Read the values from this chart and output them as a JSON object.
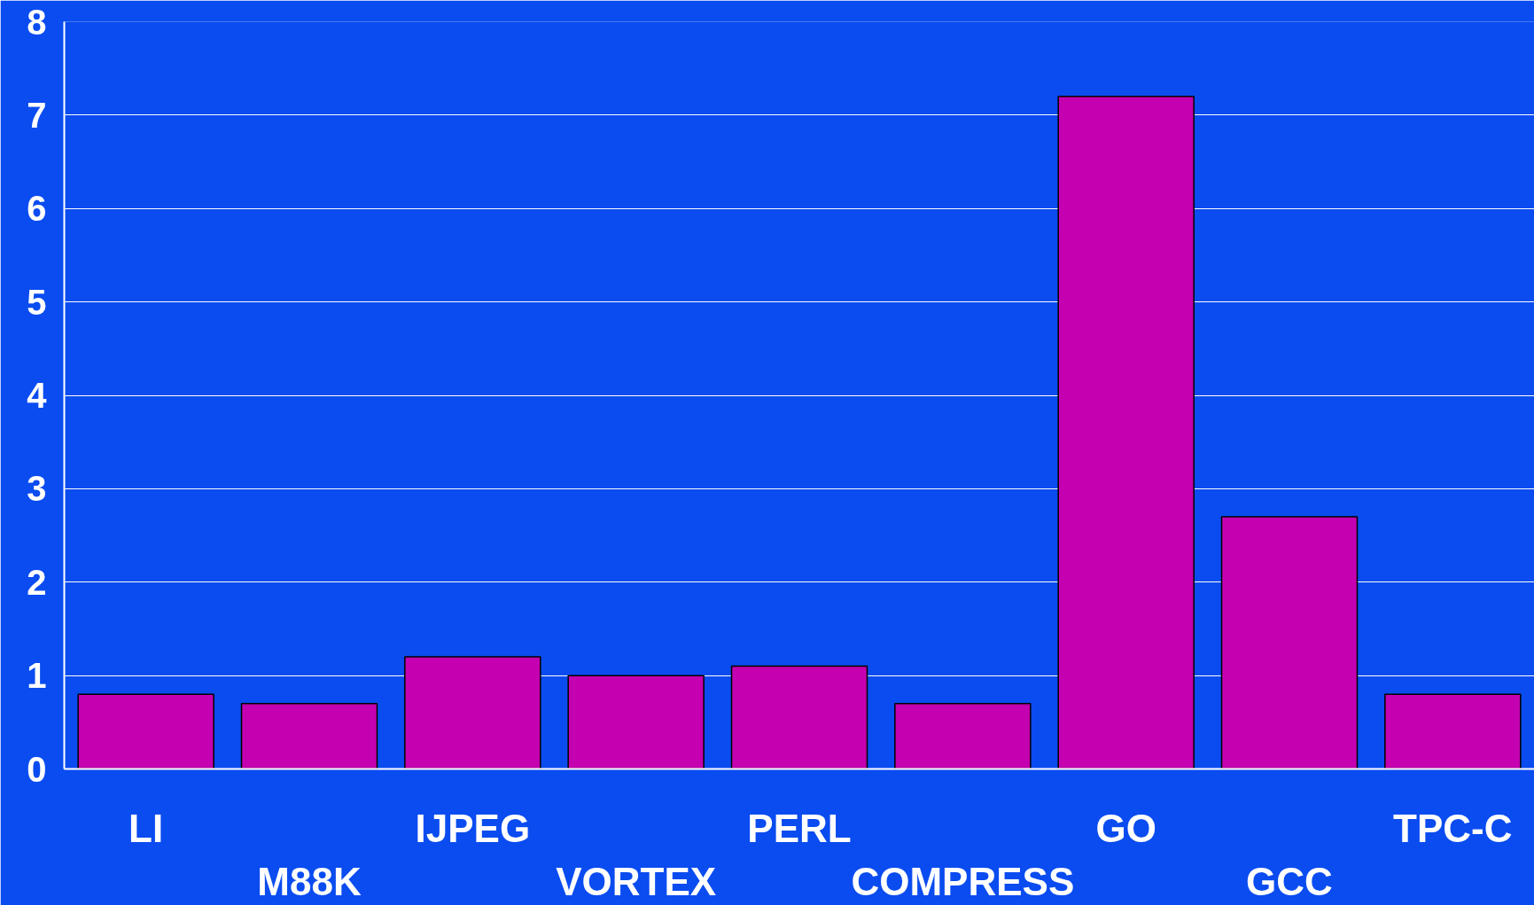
{
  "chart_data": {
    "type": "bar",
    "categories": [
      "LI",
      "M88K",
      "IJPEG",
      "VORTEX",
      "PERL",
      "COMPRESS",
      "GO",
      "GCC",
      "TPC-C"
    ],
    "values": [
      0.8,
      0.7,
      1.2,
      1.0,
      1.1,
      0.7,
      7.2,
      2.7,
      0.8
    ],
    "color": "#c400b0",
    "ylim": [
      0,
      8
    ],
    "yticks": [
      0,
      1,
      2,
      3,
      4,
      5,
      6,
      7,
      8
    ],
    "grid": "y"
  }
}
